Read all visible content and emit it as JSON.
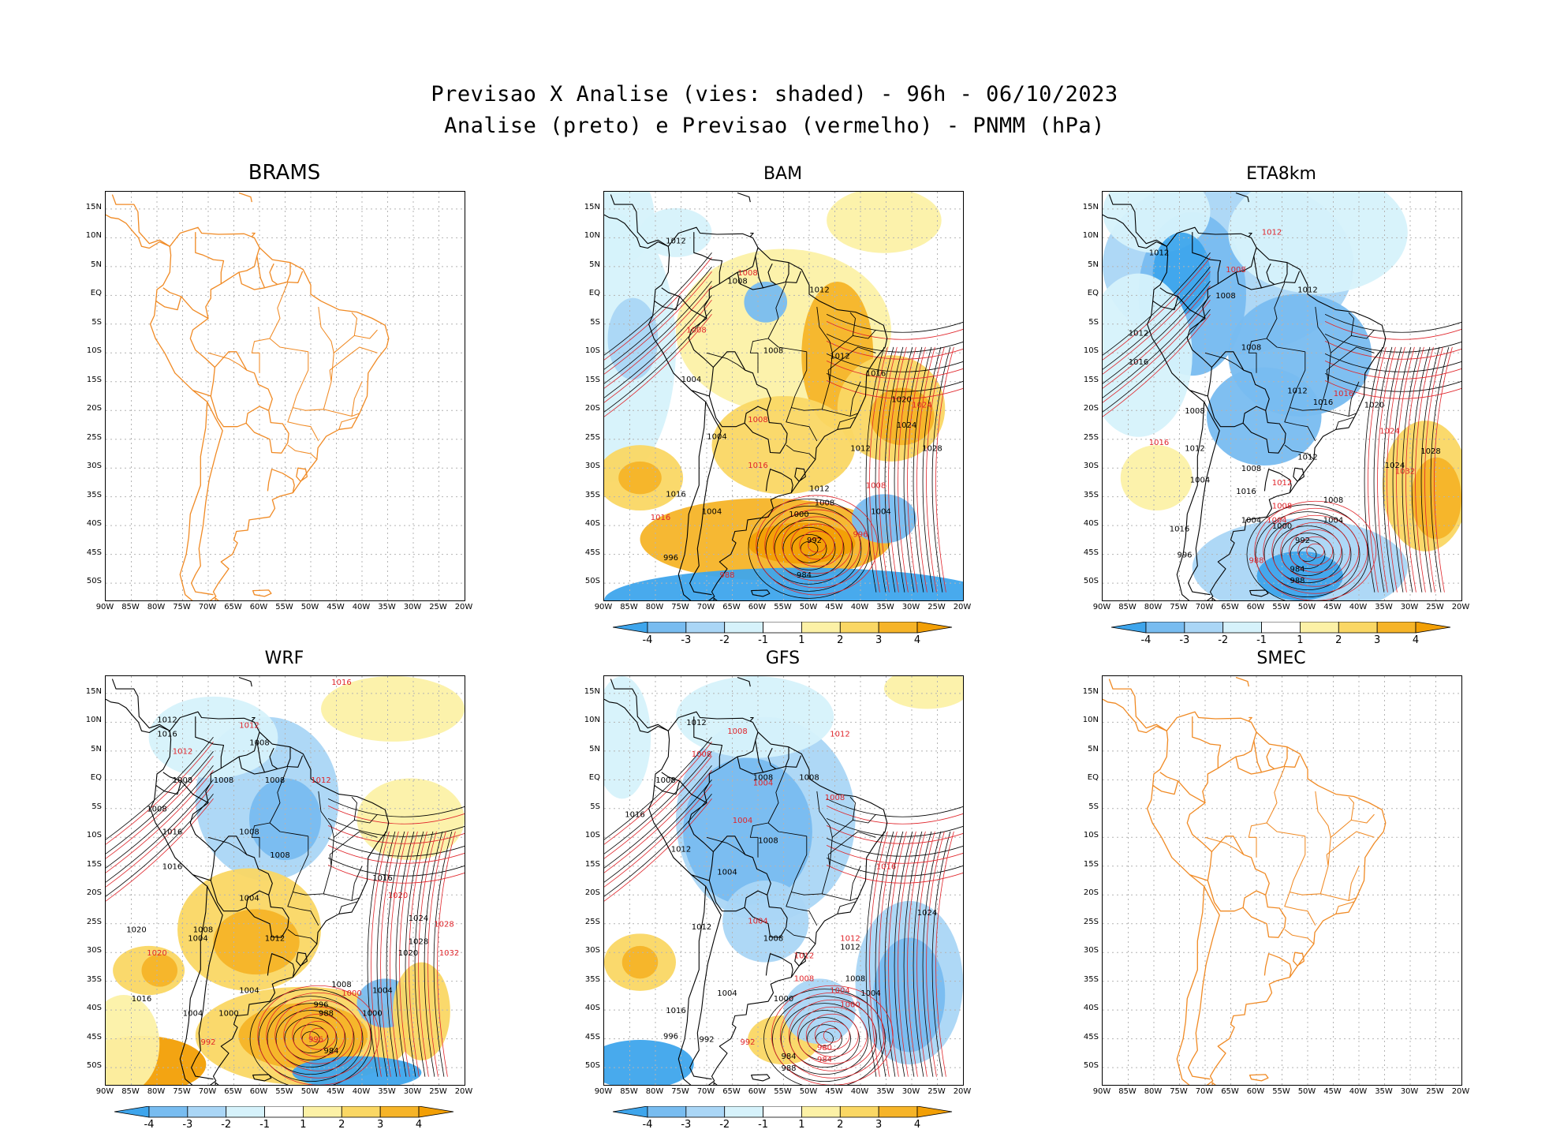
{
  "header": {
    "line1": "Previsao X Analise (vies: shaded) - 96h - 06/10/2023",
    "line2": "Analise (preto) e Previsao (vermelho) - PNMM (hPa)"
  },
  "lat_labels": [
    "15N",
    "10N",
    "5N",
    "EQ",
    "5S",
    "10S",
    "15S",
    "20S",
    "25S",
    "30S",
    "35S",
    "40S",
    "45S",
    "50S"
  ],
  "lon_labels": [
    "90W",
    "85W",
    "80W",
    "75W",
    "70W",
    "65W",
    "60W",
    "55W",
    "50W",
    "45W",
    "40W",
    "35W",
    "30W",
    "25W",
    "20W"
  ],
  "colorbar": {
    "labels": [
      "-4",
      "-3",
      "-2",
      "-1",
      "1",
      "2",
      "3",
      "4"
    ],
    "colors": [
      "#3ea5ec",
      "#78bcf0",
      "#aad6f6",
      "#d6f2fb",
      "#ffffff",
      "#fcf1a6",
      "#fad764",
      "#f6b428",
      "#f29f05"
    ]
  },
  "panels": [
    {
      "id": "brams",
      "title": "BRAMS",
      "shaded": false,
      "labels": []
    },
    {
      "id": "bam",
      "title": "BAM",
      "shaded": true,
      "labels": [
        {
          "t": "1012",
          "c": "k",
          "lon": -76,
          "lat": 9
        },
        {
          "t": "1008",
          "c": "r",
          "lon": -62,
          "lat": 3.5
        },
        {
          "t": "1008",
          "c": "k",
          "lon": -64,
          "lat": 2
        },
        {
          "t": "1012",
          "c": "k",
          "lon": -48,
          "lat": 0.5
        },
        {
          "t": "1008",
          "c": "r",
          "lon": -72,
          "lat": -6.5
        },
        {
          "t": "1008",
          "c": "k",
          "lon": -57,
          "lat": -10
        },
        {
          "t": "1012",
          "c": "k",
          "lon": -44,
          "lat": -11
        },
        {
          "t": "1016",
          "c": "k",
          "lon": -37,
          "lat": -14
        },
        {
          "t": "1020",
          "c": "k",
          "lon": -32,
          "lat": -18.5
        },
        {
          "t": "1024",
          "c": "r",
          "lon": -28,
          "lat": -19.5
        },
        {
          "t": "1024",
          "c": "k",
          "lon": -31,
          "lat": -23
        },
        {
          "t": "1028",
          "c": "k",
          "lon": -26,
          "lat": -27
        },
        {
          "t": "1004",
          "c": "k",
          "lon": -73,
          "lat": -15
        },
        {
          "t": "1004",
          "c": "k",
          "lon": -68,
          "lat": -25
        },
        {
          "t": "1008",
          "c": "r",
          "lon": -60,
          "lat": -22
        },
        {
          "t": "1012",
          "c": "k",
          "lon": -40,
          "lat": -27
        },
        {
          "t": "1016",
          "c": "r",
          "lon": -60,
          "lat": -30
        },
        {
          "t": "1008",
          "c": "r",
          "lon": -37,
          "lat": -33.5
        },
        {
          "t": "1012",
          "c": "k",
          "lon": -48,
          "lat": -34
        },
        {
          "t": "1008",
          "c": "k",
          "lon": -47,
          "lat": -36.5
        },
        {
          "t": "1004",
          "c": "k",
          "lon": -36,
          "lat": -38
        },
        {
          "t": "1004",
          "c": "k",
          "lon": -69,
          "lat": -38
        },
        {
          "t": "1000",
          "c": "k",
          "lon": -52,
          "lat": -38.5
        },
        {
          "t": "996",
          "c": "r",
          "lon": -40,
          "lat": -42
        },
        {
          "t": "992",
          "c": "k",
          "lon": -49,
          "lat": -43
        },
        {
          "t": "996",
          "c": "k",
          "lon": -77,
          "lat": -46
        },
        {
          "t": "988",
          "c": "r",
          "lon": -66,
          "lat": -49
        },
        {
          "t": "984",
          "c": "k",
          "lon": -51,
          "lat": -49
        },
        {
          "t": "1016",
          "c": "k",
          "lon": -76,
          "lat": -35
        },
        {
          "t": "1016",
          "c": "r",
          "lon": -79,
          "lat": -39
        }
      ]
    },
    {
      "id": "eta8km",
      "title": "ETA8km",
      "shaded": true,
      "labels": [
        {
          "t": "1012",
          "c": "r",
          "lon": -57,
          "lat": 10.5
        },
        {
          "t": "1012",
          "c": "k",
          "lon": -79,
          "lat": 7
        },
        {
          "t": "1008",
          "c": "r",
          "lon": -64,
          "lat": 4
        },
        {
          "t": "1008",
          "c": "k",
          "lon": -66,
          "lat": -0.5
        },
        {
          "t": "1012",
          "c": "k",
          "lon": -50,
          "lat": 0.5
        },
        {
          "t": "1008",
          "c": "k",
          "lon": -61,
          "lat": -9.5
        },
        {
          "t": "1012",
          "c": "k",
          "lon": -83,
          "lat": -7
        },
        {
          "t": "1016",
          "c": "k",
          "lon": -83,
          "lat": -12
        },
        {
          "t": "1012",
          "c": "k",
          "lon": -52,
          "lat": -17
        },
        {
          "t": "1016",
          "c": "r",
          "lon": -43,
          "lat": -17.5
        },
        {
          "t": "1016",
          "c": "k",
          "lon": -47,
          "lat": -19
        },
        {
          "t": "1020",
          "c": "k",
          "lon": -37,
          "lat": -19.5
        },
        {
          "t": "1024",
          "c": "r",
          "lon": -34,
          "lat": -24
        },
        {
          "t": "1028",
          "c": "k",
          "lon": -26,
          "lat": -27.5
        },
        {
          "t": "1024",
          "c": "k",
          "lon": -33,
          "lat": -30
        },
        {
          "t": "1032",
          "c": "r",
          "lon": -31,
          "lat": -31
        },
        {
          "t": "1008",
          "c": "k",
          "lon": -72,
          "lat": -20.5
        },
        {
          "t": "1012",
          "c": "k",
          "lon": -72,
          "lat": -27
        },
        {
          "t": "1016",
          "c": "r",
          "lon": -79,
          "lat": -26
        },
        {
          "t": "1008",
          "c": "k",
          "lon": -61,
          "lat": -30.5
        },
        {
          "t": "1012",
          "c": "r",
          "lon": -55,
          "lat": -33
        },
        {
          "t": "1012",
          "c": "k",
          "lon": -50,
          "lat": -28.5
        },
        {
          "t": "1004",
          "c": "k",
          "lon": -71,
          "lat": -32.5
        },
        {
          "t": "1016",
          "c": "k",
          "lon": -62,
          "lat": -34.5
        },
        {
          "t": "1008",
          "c": "r",
          "lon": -55,
          "lat": -37
        },
        {
          "t": "1008",
          "c": "k",
          "lon": -45,
          "lat": -36
        },
        {
          "t": "1004",
          "c": "k",
          "lon": -61,
          "lat": -39.5
        },
        {
          "t": "1004",
          "c": "r",
          "lon": -56,
          "lat": -39.5
        },
        {
          "t": "1004",
          "c": "k",
          "lon": -45,
          "lat": -39.5
        },
        {
          "t": "1000",
          "c": "k",
          "lon": -55,
          "lat": -40.5
        },
        {
          "t": "992",
          "c": "k",
          "lon": -51,
          "lat": -43
        },
        {
          "t": "988",
          "c": "r",
          "lon": -60,
          "lat": -46.5
        },
        {
          "t": "984",
          "c": "k",
          "lon": -52,
          "lat": -48
        },
        {
          "t": "988",
          "c": "k",
          "lon": -52,
          "lat": -50
        },
        {
          "t": "996",
          "c": "k",
          "lon": -74,
          "lat": -45.5
        },
        {
          "t": "1016",
          "c": "k",
          "lon": -75,
          "lat": -41
        }
      ]
    },
    {
      "id": "wrf",
      "title": "WRF",
      "shaded": true,
      "labels": [
        {
          "t": "1016",
          "c": "r",
          "lon": -44,
          "lat": 16.5
        },
        {
          "t": "1012",
          "c": "k",
          "lon": -78,
          "lat": 10
        },
        {
          "t": "1016",
          "c": "k",
          "lon": -78,
          "lat": 7.5
        },
        {
          "t": "1012",
          "c": "r",
          "lon": -62,
          "lat": 9
        },
        {
          "t": "1008",
          "c": "k",
          "lon": -60,
          "lat": 6
        },
        {
          "t": "1012",
          "c": "r",
          "lon": -75,
          "lat": 4.5
        },
        {
          "t": "1008",
          "c": "k",
          "lon": -75,
          "lat": -0.5
        },
        {
          "t": "1008",
          "c": "k",
          "lon": -67,
          "lat": -0.5
        },
        {
          "t": "1008",
          "c": "k",
          "lon": -57,
          "lat": -0.5
        },
        {
          "t": "1012",
          "c": "r",
          "lon": -48,
          "lat": -0.5
        },
        {
          "t": "1008",
          "c": "k",
          "lon": -80,
          "lat": -5.5
        },
        {
          "t": "1008",
          "c": "k",
          "lon": -62,
          "lat": -9.5
        },
        {
          "t": "1008",
          "c": "k",
          "lon": -56,
          "lat": -13.5
        },
        {
          "t": "1016",
          "c": "k",
          "lon": -77,
          "lat": -9.5
        },
        {
          "t": "1016",
          "c": "k",
          "lon": -77,
          "lat": -15.5
        },
        {
          "t": "1016",
          "c": "k",
          "lon": -36,
          "lat": -17.5
        },
        {
          "t": "1020",
          "c": "r",
          "lon": -33,
          "lat": -20.5
        },
        {
          "t": "1024",
          "c": "k",
          "lon": -29,
          "lat": -24.5
        },
        {
          "t": "1028",
          "c": "r",
          "lon": -24,
          "lat": -25.5
        },
        {
          "t": "1028",
          "c": "k",
          "lon": -29,
          "lat": -28.5
        },
        {
          "t": "1020",
          "c": "k",
          "lon": -84,
          "lat": -26.5
        },
        {
          "t": "1020",
          "c": "r",
          "lon": -80,
          "lat": -30.5
        },
        {
          "t": "1004",
          "c": "k",
          "lon": -62,
          "lat": -21
        },
        {
          "t": "1004",
          "c": "k",
          "lon": -72,
          "lat": -28
        },
        {
          "t": "1008",
          "c": "k",
          "lon": -71,
          "lat": -26.5
        },
        {
          "t": "1012",
          "c": "k",
          "lon": -57,
          "lat": -28
        },
        {
          "t": "1020",
          "c": "k",
          "lon": -31,
          "lat": -30.5
        },
        {
          "t": "1032",
          "c": "r",
          "lon": -23,
          "lat": -30.5
        },
        {
          "t": "1008",
          "c": "k",
          "lon": -44,
          "lat": -36
        },
        {
          "t": "1004",
          "c": "k",
          "lon": -36,
          "lat": -37
        },
        {
          "t": "1000",
          "c": "r",
          "lon": -42,
          "lat": -37.5
        },
        {
          "t": "1004",
          "c": "k",
          "lon": -62,
          "lat": -37
        },
        {
          "t": "1016",
          "c": "k",
          "lon": -83,
          "lat": -38.5
        },
        {
          "t": "1000",
          "c": "k",
          "lon": -38,
          "lat": -41
        },
        {
          "t": "996",
          "c": "k",
          "lon": -48,
          "lat": -39.5
        },
        {
          "t": "988",
          "c": "k",
          "lon": -47,
          "lat": -41
        },
        {
          "t": "1000",
          "c": "k",
          "lon": -66,
          "lat": -41
        },
        {
          "t": "996",
          "c": "r",
          "lon": -49,
          "lat": -45.5
        },
        {
          "t": "992",
          "c": "r",
          "lon": -70,
          "lat": -46
        },
        {
          "t": "984",
          "c": "k",
          "lon": -46,
          "lat": -47.5
        },
        {
          "t": "1004",
          "c": "k",
          "lon": -73,
          "lat": -41
        }
      ]
    },
    {
      "id": "gfs",
      "title": "GFS",
      "shaded": true,
      "labels": [
        {
          "t": "1012",
          "c": "k",
          "lon": -72,
          "lat": 9.5
        },
        {
          "t": "1008",
          "c": "r",
          "lon": -64,
          "lat": 8
        },
        {
          "t": "1012",
          "c": "r",
          "lon": -44,
          "lat": 7.5
        },
        {
          "t": "1008",
          "c": "r",
          "lon": -71,
          "lat": 4
        },
        {
          "t": "1008",
          "c": "k",
          "lon": -78,
          "lat": -0.5
        },
        {
          "t": "1008",
          "c": "k",
          "lon": -59,
          "lat": 0
        },
        {
          "t": "1008",
          "c": "k",
          "lon": -50,
          "lat": 0
        },
        {
          "t": "1004",
          "c": "r",
          "lon": -59,
          "lat": -1
        },
        {
          "t": "1008",
          "c": "r",
          "lon": -45,
          "lat": -3.5
        },
        {
          "t": "1016",
          "c": "k",
          "lon": -84,
          "lat": -6.5
        },
        {
          "t": "1004",
          "c": "r",
          "lon": -63,
          "lat": -7.5
        },
        {
          "t": "1008",
          "c": "k",
          "lon": -58,
          "lat": -11
        },
        {
          "t": "1012",
          "c": "k",
          "lon": -75,
          "lat": -12.5
        },
        {
          "t": "1004",
          "c": "k",
          "lon": -66,
          "lat": -16.5
        },
        {
          "t": "1016",
          "c": "r",
          "lon": -35,
          "lat": -15.5
        },
        {
          "t": "1024",
          "c": "k",
          "lon": -27,
          "lat": -23.5
        },
        {
          "t": "1012",
          "c": "k",
          "lon": -71,
          "lat": -26
        },
        {
          "t": "1004",
          "c": "r",
          "lon": -60,
          "lat": -25
        },
        {
          "t": "1008",
          "c": "k",
          "lon": -57,
          "lat": -28
        },
        {
          "t": "1012",
          "c": "r",
          "lon": -42,
          "lat": -28
        },
        {
          "t": "1012",
          "c": "r",
          "lon": -51,
          "lat": -31
        },
        {
          "t": "1012",
          "c": "k",
          "lon": -42,
          "lat": -29.5
        },
        {
          "t": "1008",
          "c": "r",
          "lon": -51,
          "lat": -35
        },
        {
          "t": "1008",
          "c": "k",
          "lon": -41,
          "lat": -35
        },
        {
          "t": "1004",
          "c": "r",
          "lon": -44,
          "lat": -37
        },
        {
          "t": "1004",
          "c": "k",
          "lon": -38,
          "lat": -37.5
        },
        {
          "t": "1004",
          "c": "k",
          "lon": -66,
          "lat": -37.5
        },
        {
          "t": "1000",
          "c": "k",
          "lon": -55,
          "lat": -38.5
        },
        {
          "t": "1000",
          "c": "r",
          "lon": -42,
          "lat": -39.5
        },
        {
          "t": "996",
          "c": "k",
          "lon": -77,
          "lat": -45
        },
        {
          "t": "992",
          "c": "k",
          "lon": -70,
          "lat": -45.5
        },
        {
          "t": "992",
          "c": "r",
          "lon": -62,
          "lat": -46
        },
        {
          "t": "980",
          "c": "r",
          "lon": -47,
          "lat": -47
        },
        {
          "t": "984",
          "c": "k",
          "lon": -54,
          "lat": -48.5
        },
        {
          "t": "984",
          "c": "r",
          "lon": -47,
          "lat": -49
        },
        {
          "t": "988",
          "c": "k",
          "lon": -54,
          "lat": -50.5
        },
        {
          "t": "1016",
          "c": "k",
          "lon": -76,
          "lat": -40.5
        }
      ]
    },
    {
      "id": "smec",
      "title": "SMEC",
      "shaded": false,
      "labels": []
    }
  ]
}
